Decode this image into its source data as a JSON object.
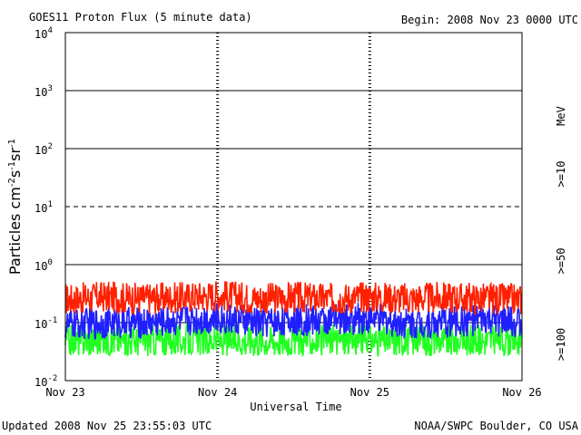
{
  "header": {
    "title": "GOES11 Proton Flux (5 minute data)",
    "begin": "Begin: 2008 Nov 23 0000 UTC"
  },
  "footer": {
    "updated": "Updated 2008 Nov 25 23:55:03 UTC",
    "credit": "NOAA/SWPC Boulder, CO USA"
  },
  "chart_data": {
    "type": "line",
    "title": "GOES11 Proton Flux (5 minute data)",
    "xlabel": "Universal Time",
    "ylabel": "Particles cm-2s-1sr-1",
    "y_scale": "log",
    "ylim": [
      0.01,
      10000
    ],
    "y_ticks": [
      {
        "base": "10",
        "exp": "-2"
      },
      {
        "base": "10",
        "exp": "-1"
      },
      {
        "base": "10",
        "exp": "0"
      },
      {
        "base": "10",
        "exp": "1"
      },
      {
        "base": "10",
        "exp": "2"
      },
      {
        "base": "10",
        "exp": "3"
      },
      {
        "base": "10",
        "exp": "4"
      }
    ],
    "x_categories": [
      "Nov 23",
      "Nov 24",
      "Nov 25",
      "Nov 26"
    ],
    "xlim": [
      "2008-11-23 00:00",
      "2008-11-26 00:00"
    ],
    "grid": "solid horizontal lines at each decade, dashed at 10^1, dotted day separators",
    "legend_unit": "MeV",
    "legend_position": "right",
    "series": [
      {
        "name": ">=10",
        "color": "#ff2000",
        "x": [
          "2008-11-23 00:00",
          "2008-11-23 06:00",
          "2008-11-23 12:00",
          "2008-11-23 18:00",
          "2008-11-24 00:00",
          "2008-11-24 06:00",
          "2008-11-24 12:00",
          "2008-11-24 18:00",
          "2008-11-25 00:00",
          "2008-11-25 06:00",
          "2008-11-25 12:00",
          "2008-11-25 18:00",
          "2008-11-26 00:00"
        ],
        "values": [
          0.25,
          0.28,
          0.26,
          0.27,
          0.3,
          0.26,
          0.27,
          0.26,
          0.28,
          0.26,
          0.27,
          0.26,
          0.25
        ]
      },
      {
        "name": ">=50",
        "color": "#2020ff",
        "x": [
          "2008-11-23 00:00",
          "2008-11-23 06:00",
          "2008-11-23 12:00",
          "2008-11-23 18:00",
          "2008-11-24 00:00",
          "2008-11-24 06:00",
          "2008-11-24 12:00",
          "2008-11-24 18:00",
          "2008-11-25 00:00",
          "2008-11-25 06:00",
          "2008-11-25 12:00",
          "2008-11-25 18:00",
          "2008-11-26 00:00"
        ],
        "values": [
          0.09,
          0.1,
          0.1,
          0.11,
          0.12,
          0.1,
          0.11,
          0.11,
          0.12,
          0.1,
          0.1,
          0.11,
          0.1
        ]
      },
      {
        "name": ">=100",
        "color": "#20ff20",
        "x": [
          "2008-11-23 00:00",
          "2008-11-23 06:00",
          "2008-11-23 12:00",
          "2008-11-23 18:00",
          "2008-11-24 00:00",
          "2008-11-24 06:00",
          "2008-11-24 12:00",
          "2008-11-24 18:00",
          "2008-11-25 00:00",
          "2008-11-25 06:00",
          "2008-11-25 12:00",
          "2008-11-25 18:00",
          "2008-11-26 00:00"
        ],
        "values": [
          0.05,
          0.05,
          0.05,
          0.05,
          0.05,
          0.05,
          0.05,
          0.05,
          0.05,
          0.05,
          0.05,
          0.05,
          0.05
        ]
      }
    ]
  }
}
